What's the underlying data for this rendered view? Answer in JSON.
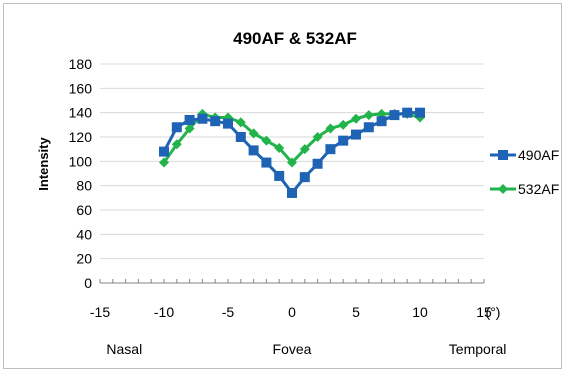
{
  "chart_data": {
    "type": "line",
    "title": "490AF & 532AF",
    "xlabel": "",
    "ylabel": "Intensity",
    "x_unit_label": "(°)",
    "xlim": [
      -15,
      15
    ],
    "ylim": [
      0,
      180
    ],
    "x_ticks": [
      -15,
      -10,
      -5,
      0,
      5,
      10,
      15
    ],
    "y_ticks": [
      0,
      20,
      40,
      60,
      80,
      100,
      120,
      140,
      160,
      180
    ],
    "grid": "horizontal",
    "legend_position": "right",
    "region_labels": [
      "Nasal",
      "Fovea",
      "Temporal"
    ],
    "series": [
      {
        "name": "490AF",
        "color": "#1f63b5",
        "marker": "square",
        "x": [
          -10,
          -9,
          -8,
          -7,
          -6,
          -5,
          -4,
          -3,
          -2,
          -1,
          0,
          1,
          2,
          3,
          4,
          5,
          6,
          7,
          8,
          9,
          10
        ],
        "values": [
          108,
          128,
          134,
          135,
          133,
          131,
          120,
          109,
          99,
          88,
          74,
          87,
          98,
          110,
          117,
          122,
          128,
          133,
          138,
          140,
          140
        ]
      },
      {
        "name": "532AF",
        "color": "#22b34a",
        "marker": "diamond",
        "x": [
          -10,
          -9,
          -8,
          -7,
          -6,
          -5,
          -4,
          -3,
          -2,
          -1,
          0,
          1,
          2,
          3,
          4,
          5,
          6,
          7,
          8,
          9,
          10
        ],
        "values": [
          99,
          114,
          127,
          139,
          136,
          136,
          132,
          123,
          117,
          111,
          99,
          110,
          120,
          127,
          130,
          135,
          138,
          139,
          139,
          139,
          136
        ]
      }
    ]
  }
}
